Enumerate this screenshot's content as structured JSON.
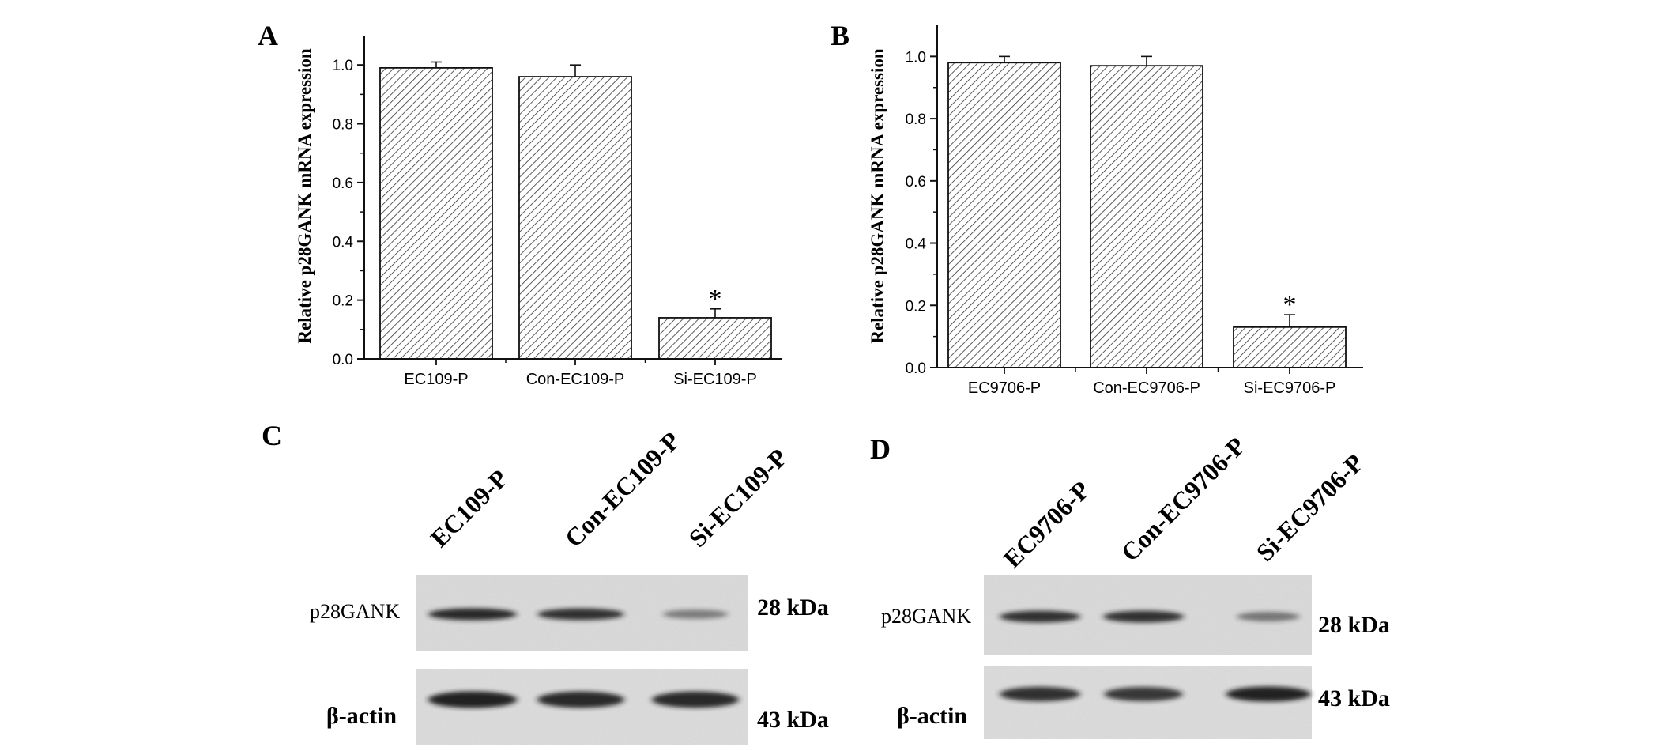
{
  "colors": {
    "ink": "#111111",
    "hatch": "#333333",
    "blot_bg": "#dcdcdc",
    "band": "#1e1e1e"
  },
  "panels": {
    "a": "A",
    "b": "B",
    "c": "C",
    "d": "D"
  },
  "chart_data": [
    {
      "type": "bar",
      "panel": "A",
      "categories": [
        "EC109-P",
        "Con-EC109-P",
        "Si-EC109-P"
      ],
      "values": [
        0.99,
        0.96,
        0.14
      ],
      "errors": [
        0.02,
        0.04,
        0.03
      ],
      "annotations": [
        "",
        "",
        "*"
      ],
      "ylabel": "Relative p28GANK mRNA expression",
      "ylim": [
        0,
        1.1
      ],
      "yticks": [
        "0.0",
        "0.2",
        "0.4",
        "0.6",
        "0.8",
        "1.0"
      ],
      "ytick_values": [
        0,
        0.2,
        0.4,
        0.6,
        0.8,
        1.0
      ],
      "fill": "diagonal-hatch",
      "grid": false
    },
    {
      "type": "bar",
      "panel": "B",
      "categories": [
        "EC9706-P",
        "Con-EC9706-P",
        "Si-EC9706-P"
      ],
      "values": [
        0.98,
        0.97,
        0.13
      ],
      "errors": [
        0.02,
        0.03,
        0.04
      ],
      "annotations": [
        "",
        "",
        "*"
      ],
      "ylabel": "Relative p28GANK mRNA expression",
      "ylim": [
        0,
        1.1
      ],
      "yticks": [
        "0.0",
        "0.2",
        "0.4",
        "0.6",
        "0.8",
        "1.0"
      ],
      "ytick_values": [
        0,
        0.2,
        0.4,
        0.6,
        0.8,
        1.0
      ],
      "fill": "diagonal-hatch",
      "grid": false
    }
  ],
  "blots": [
    {
      "panel": "C",
      "lanes": [
        "EC109-P",
        "Con-EC109-P",
        "Si-EC109-P"
      ],
      "rows": [
        {
          "protein": "p28GANK",
          "size": "28 kDa",
          "intensity": [
            0.85,
            0.8,
            0.3
          ]
        },
        {
          "protein": "β-actin",
          "size": "43 kDa",
          "intensity": [
            0.9,
            0.85,
            0.85
          ]
        }
      ]
    },
    {
      "panel": "D",
      "lanes": [
        "EC9706-P",
        "Con-EC9706-P",
        "Si-EC9706-P"
      ],
      "rows": [
        {
          "protein": "p28GANK",
          "size": "28 kDa",
          "intensity": [
            0.8,
            0.8,
            0.35
          ]
        },
        {
          "protein": "β-actin",
          "size": "43 kDa",
          "intensity": [
            0.8,
            0.75,
            0.9
          ]
        }
      ]
    }
  ]
}
